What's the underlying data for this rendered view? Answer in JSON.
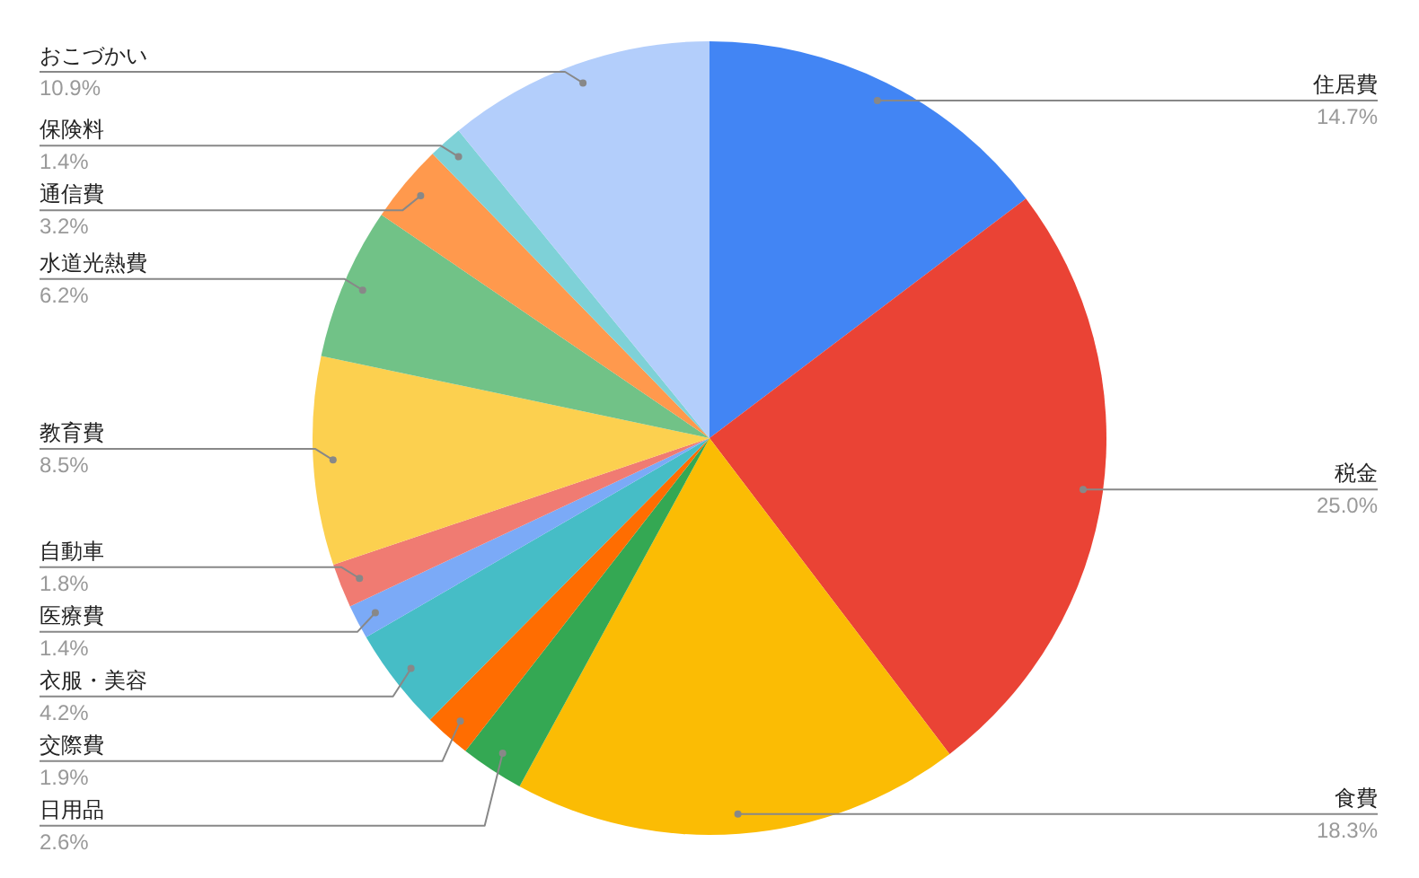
{
  "chart_data": {
    "type": "pie",
    "categories": [
      "住居費",
      "税金",
      "食費",
      "日用品",
      "交際費",
      "衣服・美容",
      "医療費",
      "自動車",
      "教育費",
      "水道光熱費",
      "通信費",
      "保険料",
      "おこづかい"
    ],
    "values": [
      14.7,
      25.0,
      18.3,
      2.6,
      1.9,
      4.2,
      1.4,
      1.8,
      8.5,
      6.2,
      3.2,
      1.4,
      10.9
    ],
    "value_labels": [
      "14.7%",
      "25.0%",
      "18.3%",
      "2.6%",
      "1.9%",
      "4.2%",
      "1.4%",
      "1.8%",
      "8.5%",
      "6.2%",
      "3.2%",
      "1.4%",
      "10.9%"
    ],
    "colors": [
      "#4285f4",
      "#ea4335",
      "#fbbc04",
      "#34a853",
      "#ff6d01",
      "#46bdc6",
      "#7baaf7",
      "#f07b72",
      "#fcd04f",
      "#71c287",
      "#ff994d",
      "#7ed1d7",
      "#b3cefb"
    ]
  }
}
